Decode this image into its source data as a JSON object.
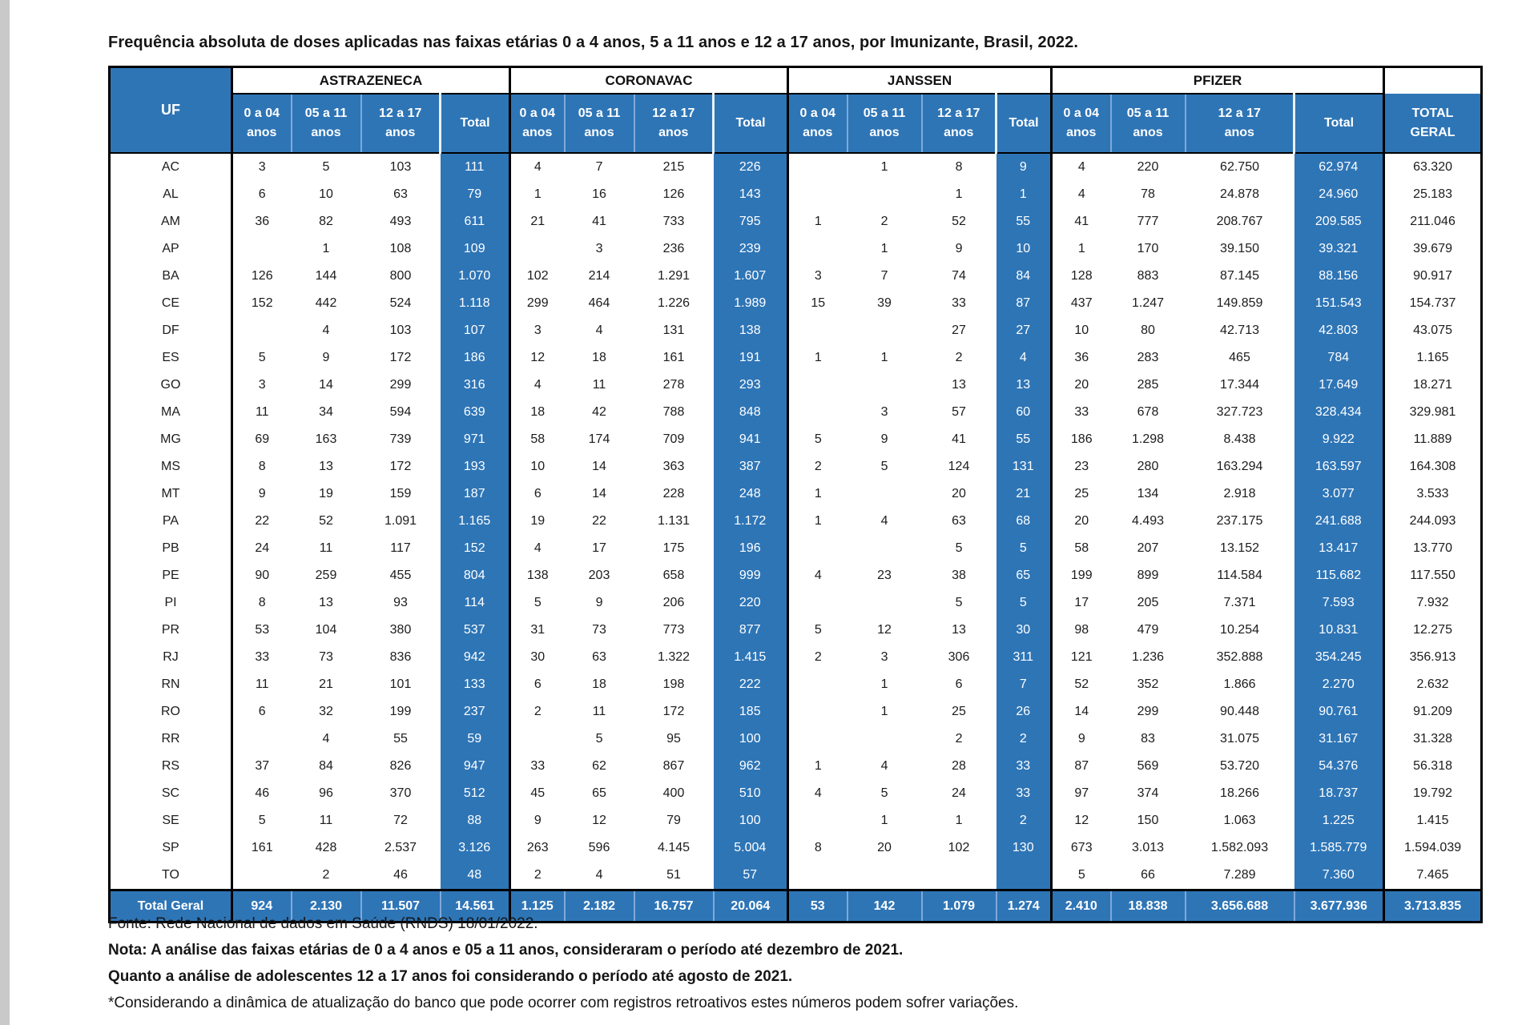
{
  "title": "Frequência absoluta de doses aplicadas nas faixas etárias 0 a 4 anos, 5 a 11 anos e 12 a 17 anos, por Imunizante, Brasil, 2022.",
  "colors": {
    "header_blue": "#2E75B6",
    "separator_blue": "#7FA9D9",
    "border_black": "#000000",
    "text_color": "#1C1C1C",
    "page_bg": "#FFFFFF",
    "edge_strip": "#C9C9C9"
  },
  "table": {
    "uf_header": "UF",
    "groups": [
      {
        "name": "ASTRAZENECA",
        "key": "astrazeneca"
      },
      {
        "name": "CORONAVAC",
        "key": "coronavac"
      },
      {
        "name": "JANSSEN",
        "key": "janssen"
      },
      {
        "name": "PFIZER",
        "key": "pfizer"
      }
    ],
    "sub_headers": [
      {
        "line1": "0 a 04",
        "line2": "anos",
        "key": "0-4-anos"
      },
      {
        "line1": "05 a 11",
        "line2": "anos",
        "key": "5-11-anos"
      },
      {
        "line1": "12 a 17",
        "line2": "anos",
        "key": "12-17-anos"
      },
      {
        "line1": "",
        "line2": "Total",
        "key": "total"
      }
    ],
    "total_geral_header": {
      "line1": "TOTAL",
      "line2": "GERAL"
    },
    "rows": [
      {
        "uf": "AC",
        "values": [
          "3",
          "5",
          "103",
          "111",
          "4",
          "7",
          "215",
          "226",
          "",
          "1",
          "8",
          "9",
          "4",
          "220",
          "62.750",
          "62.974",
          "63.320"
        ]
      },
      {
        "uf": "AL",
        "values": [
          "6",
          "10",
          "63",
          "79",
          "1",
          "16",
          "126",
          "143",
          "",
          "",
          "1",
          "1",
          "4",
          "78",
          "24.878",
          "24.960",
          "25.183"
        ]
      },
      {
        "uf": "AM",
        "values": [
          "36",
          "82",
          "493",
          "611",
          "21",
          "41",
          "733",
          "795",
          "1",
          "2",
          "52",
          "55",
          "41",
          "777",
          "208.767",
          "209.585",
          "211.046"
        ]
      },
      {
        "uf": "AP",
        "values": [
          "",
          "1",
          "108",
          "109",
          "",
          "3",
          "236",
          "239",
          "",
          "1",
          "9",
          "10",
          "1",
          "170",
          "39.150",
          "39.321",
          "39.679"
        ]
      },
      {
        "uf": "BA",
        "values": [
          "126",
          "144",
          "800",
          "1.070",
          "102",
          "214",
          "1.291",
          "1.607",
          "3",
          "7",
          "74",
          "84",
          "128",
          "883",
          "87.145",
          "88.156",
          "90.917"
        ]
      },
      {
        "uf": "CE",
        "values": [
          "152",
          "442",
          "524",
          "1.118",
          "299",
          "464",
          "1.226",
          "1.989",
          "15",
          "39",
          "33",
          "87",
          "437",
          "1.247",
          "149.859",
          "151.543",
          "154.737"
        ]
      },
      {
        "uf": "DF",
        "values": [
          "",
          "4",
          "103",
          "107",
          "3",
          "4",
          "131",
          "138",
          "",
          "",
          "27",
          "27",
          "10",
          "80",
          "42.713",
          "42.803",
          "43.075"
        ]
      },
      {
        "uf": "ES",
        "values": [
          "5",
          "9",
          "172",
          "186",
          "12",
          "18",
          "161",
          "191",
          "1",
          "1",
          "2",
          "4",
          "36",
          "283",
          "465",
          "784",
          "1.165"
        ]
      },
      {
        "uf": "GO",
        "values": [
          "3",
          "14",
          "299",
          "316",
          "4",
          "11",
          "278",
          "293",
          "",
          "",
          "13",
          "13",
          "20",
          "285",
          "17.344",
          "17.649",
          "18.271"
        ]
      },
      {
        "uf": "MA",
        "values": [
          "11",
          "34",
          "594",
          "639",
          "18",
          "42",
          "788",
          "848",
          "",
          "3",
          "57",
          "60",
          "33",
          "678",
          "327.723",
          "328.434",
          "329.981"
        ]
      },
      {
        "uf": "MG",
        "values": [
          "69",
          "163",
          "739",
          "971",
          "58",
          "174",
          "709",
          "941",
          "5",
          "9",
          "41",
          "55",
          "186",
          "1.298",
          "8.438",
          "9.922",
          "11.889"
        ]
      },
      {
        "uf": "MS",
        "values": [
          "8",
          "13",
          "172",
          "193",
          "10",
          "14",
          "363",
          "387",
          "2",
          "5",
          "124",
          "131",
          "23",
          "280",
          "163.294",
          "163.597",
          "164.308"
        ]
      },
      {
        "uf": "MT",
        "values": [
          "9",
          "19",
          "159",
          "187",
          "6",
          "14",
          "228",
          "248",
          "1",
          "",
          "20",
          "21",
          "25",
          "134",
          "2.918",
          "3.077",
          "3.533"
        ]
      },
      {
        "uf": "PA",
        "values": [
          "22",
          "52",
          "1.091",
          "1.165",
          "19",
          "22",
          "1.131",
          "1.172",
          "1",
          "4",
          "63",
          "68",
          "20",
          "4.493",
          "237.175",
          "241.688",
          "244.093"
        ]
      },
      {
        "uf": "PB",
        "values": [
          "24",
          "11",
          "117",
          "152",
          "4",
          "17",
          "175",
          "196",
          "",
          "",
          "5",
          "5",
          "58",
          "207",
          "13.152",
          "13.417",
          "13.770"
        ]
      },
      {
        "uf": "PE",
        "values": [
          "90",
          "259",
          "455",
          "804",
          "138",
          "203",
          "658",
          "999",
          "4",
          "23",
          "38",
          "65",
          "199",
          "899",
          "114.584",
          "115.682",
          "117.550"
        ]
      },
      {
        "uf": "PI",
        "values": [
          "8",
          "13",
          "93",
          "114",
          "5",
          "9",
          "206",
          "220",
          "",
          "",
          "5",
          "5",
          "17",
          "205",
          "7.371",
          "7.593",
          "7.932"
        ]
      },
      {
        "uf": "PR",
        "values": [
          "53",
          "104",
          "380",
          "537",
          "31",
          "73",
          "773",
          "877",
          "5",
          "12",
          "13",
          "30",
          "98",
          "479",
          "10.254",
          "10.831",
          "12.275"
        ]
      },
      {
        "uf": "RJ",
        "values": [
          "33",
          "73",
          "836",
          "942",
          "30",
          "63",
          "1.322",
          "1.415",
          "2",
          "3",
          "306",
          "311",
          "121",
          "1.236",
          "352.888",
          "354.245",
          "356.913"
        ]
      },
      {
        "uf": "RN",
        "values": [
          "11",
          "21",
          "101",
          "133",
          "6",
          "18",
          "198",
          "222",
          "",
          "1",
          "6",
          "7",
          "52",
          "352",
          "1.866",
          "2.270",
          "2.632"
        ]
      },
      {
        "uf": "RO",
        "values": [
          "6",
          "32",
          "199",
          "237",
          "2",
          "11",
          "172",
          "185",
          "",
          "1",
          "25",
          "26",
          "14",
          "299",
          "90.448",
          "90.761",
          "91.209"
        ]
      },
      {
        "uf": "RR",
        "values": [
          "",
          "4",
          "55",
          "59",
          "",
          "5",
          "95",
          "100",
          "",
          "",
          "2",
          "2",
          "9",
          "83",
          "31.075",
          "31.167",
          "31.328"
        ]
      },
      {
        "uf": "RS",
        "values": [
          "37",
          "84",
          "826",
          "947",
          "33",
          "62",
          "867",
          "962",
          "1",
          "4",
          "28",
          "33",
          "87",
          "569",
          "53.720",
          "54.376",
          "56.318"
        ]
      },
      {
        "uf": "SC",
        "values": [
          "46",
          "96",
          "370",
          "512",
          "45",
          "65",
          "400",
          "510",
          "4",
          "5",
          "24",
          "33",
          "97",
          "374",
          "18.266",
          "18.737",
          "19.792"
        ]
      },
      {
        "uf": "SE",
        "values": [
          "5",
          "11",
          "72",
          "88",
          "9",
          "12",
          "79",
          "100",
          "",
          "1",
          "1",
          "2",
          "12",
          "150",
          "1.063",
          "1.225",
          "1.415"
        ]
      },
      {
        "uf": "SP",
        "values": [
          "161",
          "428",
          "2.537",
          "3.126",
          "263",
          "596",
          "4.145",
          "5.004",
          "8",
          "20",
          "102",
          "130",
          "673",
          "3.013",
          "1.582.093",
          "1.585.779",
          "1.594.039"
        ]
      },
      {
        "uf": "TO",
        "values": [
          "",
          "2",
          "46",
          "48",
          "2",
          "4",
          "51",
          "57",
          "",
          "",
          "",
          "",
          "5",
          "66",
          "7.289",
          "7.360",
          "7.465"
        ]
      }
    ],
    "total_row": {
      "label": "Total Geral",
      "values": [
        "924",
        "2.130",
        "11.507",
        "14.561",
        "1.125",
        "2.182",
        "16.757",
        "20.064",
        "53",
        "142",
        "1.079",
        "1.274",
        "2.410",
        "18.838",
        "3.656.688",
        "3.677.936",
        "3.713.835"
      ]
    }
  },
  "footer": {
    "lines": [
      {
        "text": "Fonte: Rede Nacional de dados em Saúde (RNDS) 18/01/2022.",
        "bold": false
      },
      {
        "text": "Nota: A análise das faixas etárias de 0 a 4 anos e 05 a 11 anos, consideraram o período até dezembro de 2021.",
        "bold": true
      },
      {
        "text": "Quanto a análise de adolescentes 12 a 17 anos foi considerando o período até agosto de 2021.",
        "bold": true
      },
      {
        "text": "*Considerando a dinâmica de atualização do banco que pode ocorrer com registros retroativos estes números podem sofrer variações.",
        "bold": false
      }
    ]
  }
}
